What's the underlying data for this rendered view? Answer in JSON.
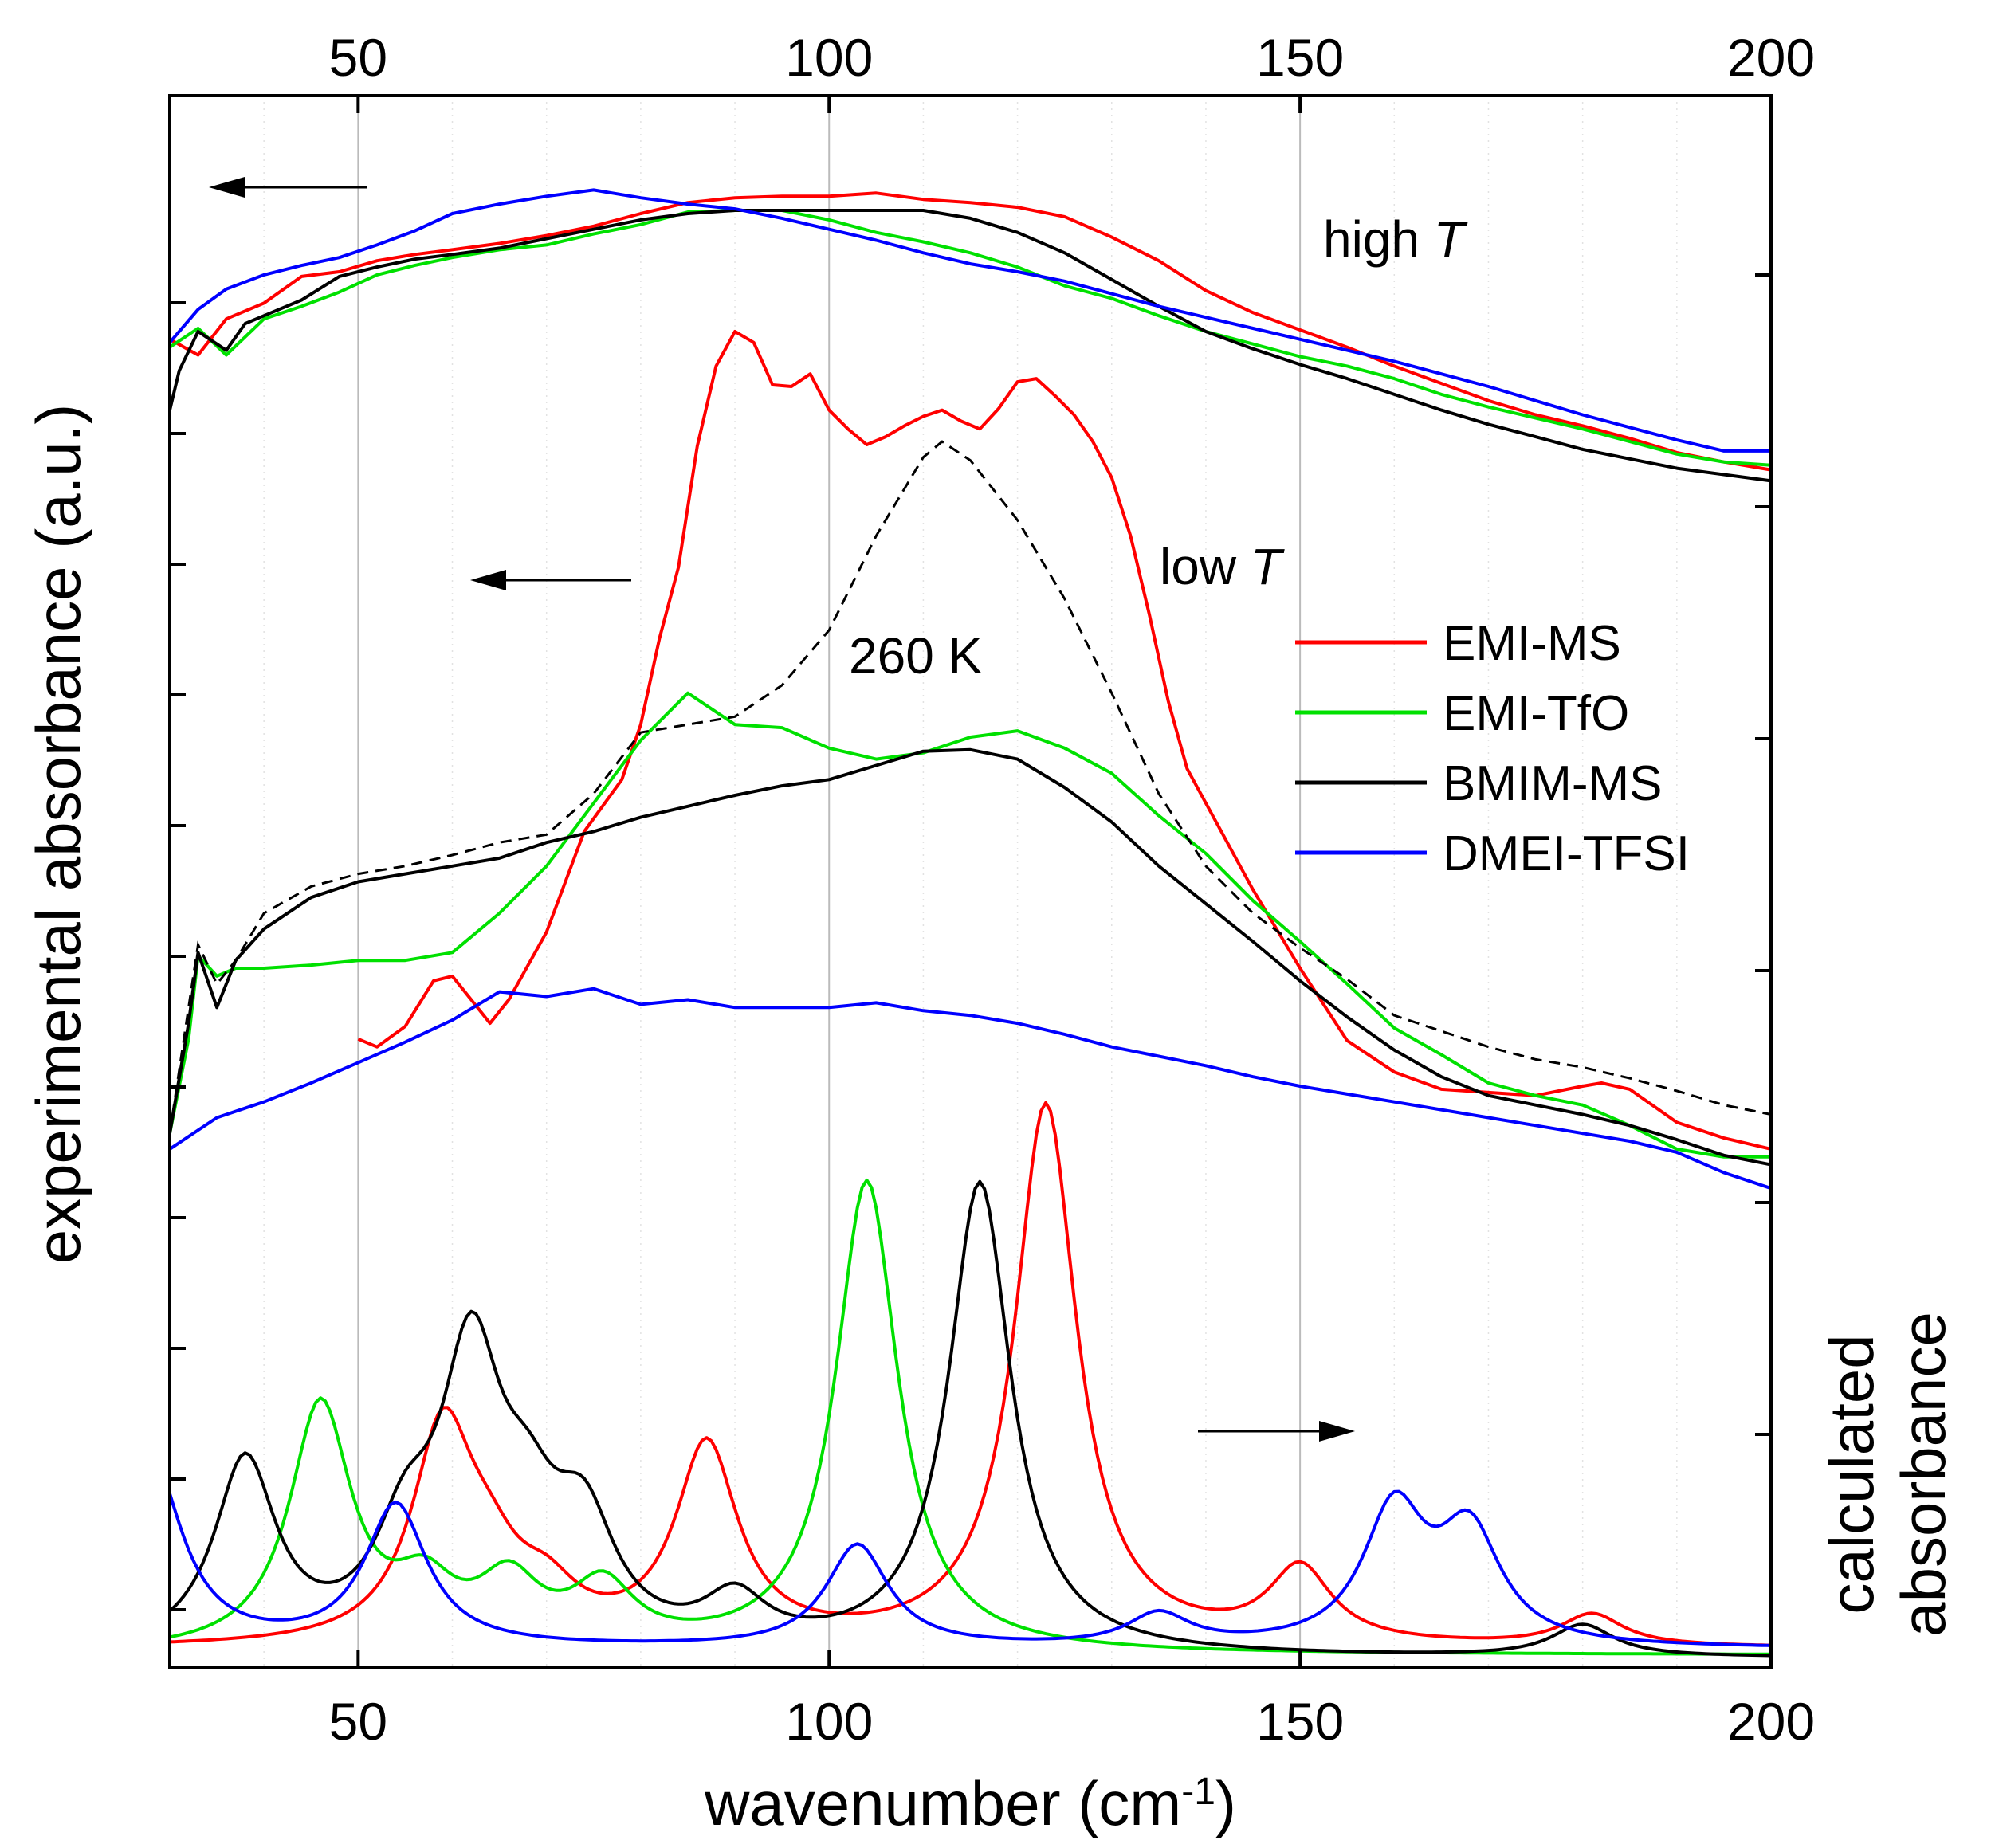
{
  "chart_data": {
    "type": "line",
    "x_label": "wavenumber (cm",
    "x_label_sup": "-1",
    "x_label_close": ")",
    "y_label_left": "experimental absorbance (a.u.)",
    "y_label_right_line1": "calculated",
    "y_label_right_line2": "absorbance",
    "xlim": [
      30,
      200
    ],
    "x_ticks": [
      50,
      100,
      150,
      200
    ],
    "x_tick_labels": [
      "50",
      "100",
      "150",
      "200"
    ],
    "top_tick_labels": [
      "50",
      "100",
      "150",
      "200"
    ],
    "y_range_normalized": [
      0,
      1
    ],
    "annotations": {
      "high_t": "high",
      "low_t": "low",
      "t_symbol": "T",
      "temp_260": "260 K"
    },
    "legend": [
      "EMI-MS",
      "EMI-TfO",
      "BMIM-MS",
      "DMEI-TFSI"
    ],
    "colors": {
      "EMI-MS": "#ff0000",
      "EMI-TfO": "#00e000",
      "BMIM-MS": "#000000",
      "DMEI-TFSI": "#0000ff",
      "ref": "#000000"
    },
    "series_high_T": [
      {
        "name": "EMI-MS",
        "x": [
          30,
          33,
          36,
          40,
          44,
          48,
          52,
          56,
          60,
          65,
          70,
          75,
          80,
          85,
          90,
          95,
          100,
          105,
          110,
          115,
          120,
          125,
          130,
          135,
          140,
          145,
          150,
          155,
          160,
          165,
          170,
          175,
          180,
          185,
          190,
          195,
          200
        ],
        "y": [
          0.845,
          0.835,
          0.858,
          0.868,
          0.885,
          0.888,
          0.895,
          0.899,
          0.902,
          0.906,
          0.911,
          0.917,
          0.925,
          0.932,
          0.935,
          0.936,
          0.936,
          0.938,
          0.934,
          0.932,
          0.929,
          0.923,
          0.91,
          0.895,
          0.876,
          0.862,
          0.851,
          0.84,
          0.828,
          0.817,
          0.806,
          0.797,
          0.79,
          0.782,
          0.773,
          0.767,
          0.762
        ]
      },
      {
        "name": "EMI-TfO",
        "x": [
          30,
          33,
          36,
          40,
          44,
          48,
          52,
          56,
          60,
          65,
          70,
          75,
          80,
          85,
          90,
          95,
          100,
          105,
          110,
          115,
          120,
          125,
          130,
          135,
          140,
          145,
          150,
          155,
          160,
          165,
          170,
          175,
          180,
          185,
          190,
          195,
          200
        ],
        "y": [
          0.84,
          0.852,
          0.835,
          0.858,
          0.866,
          0.875,
          0.886,
          0.892,
          0.897,
          0.902,
          0.905,
          0.912,
          0.918,
          0.926,
          0.927,
          0.927,
          0.921,
          0.913,
          0.907,
          0.9,
          0.891,
          0.879,
          0.871,
          0.86,
          0.85,
          0.842,
          0.834,
          0.828,
          0.82,
          0.81,
          0.802,
          0.795,
          0.788,
          0.78,
          0.772,
          0.767,
          0.765
        ]
      },
      {
        "name": "BMIM-MS",
        "x": [
          30,
          31,
          33,
          36,
          38,
          40,
          44,
          48,
          52,
          56,
          60,
          65,
          70,
          75,
          80,
          85,
          90,
          95,
          100,
          105,
          110,
          115,
          120,
          125,
          130,
          135,
          140,
          145,
          150,
          155,
          160,
          165,
          170,
          175,
          180,
          185,
          190,
          195,
          200
        ],
        "y": [
          0.8,
          0.825,
          0.85,
          0.838,
          0.855,
          0.86,
          0.87,
          0.885,
          0.891,
          0.896,
          0.899,
          0.903,
          0.909,
          0.915,
          0.921,
          0.925,
          0.927,
          0.927,
          0.927,
          0.927,
          0.927,
          0.922,
          0.913,
          0.9,
          0.883,
          0.866,
          0.85,
          0.839,
          0.829,
          0.82,
          0.81,
          0.8,
          0.791,
          0.783,
          0.775,
          0.769,
          0.763,
          0.759,
          0.755
        ]
      },
      {
        "name": "DMEI-TFSI",
        "x": [
          30,
          33,
          36,
          40,
          44,
          48,
          52,
          56,
          60,
          65,
          70,
          75,
          80,
          85,
          90,
          95,
          100,
          105,
          110,
          115,
          120,
          125,
          130,
          135,
          140,
          145,
          150,
          155,
          160,
          165,
          170,
          175,
          180,
          185,
          190,
          195,
          200
        ],
        "y": [
          0.843,
          0.864,
          0.877,
          0.886,
          0.892,
          0.897,
          0.905,
          0.914,
          0.925,
          0.931,
          0.936,
          0.94,
          0.935,
          0.931,
          0.928,
          0.922,
          0.915,
          0.908,
          0.9,
          0.893,
          0.888,
          0.882,
          0.874,
          0.866,
          0.859,
          0.852,
          0.845,
          0.838,
          0.831,
          0.823,
          0.815,
          0.806,
          0.797,
          0.789,
          0.781,
          0.774,
          0.774
        ]
      }
    ],
    "series_low_T": [
      {
        "name": "EMI-MS",
        "x": [
          50,
          52,
          55,
          58,
          60,
          62,
          64,
          66,
          70,
          74,
          78,
          80,
          82,
          84,
          86,
          88,
          90,
          92,
          94,
          96,
          98,
          100,
          102,
          104,
          106,
          108,
          110,
          112,
          114,
          116,
          118,
          120,
          122,
          124,
          126,
          128,
          130,
          132,
          134,
          136,
          138,
          140,
          145,
          150,
          155,
          160,
          165,
          170,
          175,
          180,
          182,
          185,
          190,
          195,
          200
        ],
        "y": [
          0.4,
          0.395,
          0.408,
          0.437,
          0.44,
          0.425,
          0.41,
          0.425,
          0.468,
          0.532,
          0.565,
          0.6,
          0.655,
          0.7,
          0.777,
          0.828,
          0.85,
          0.843,
          0.816,
          0.815,
          0.823,
          0.8,
          0.788,
          0.778,
          0.783,
          0.79,
          0.796,
          0.8,
          0.793,
          0.788,
          0.801,
          0.818,
          0.82,
          0.809,
          0.797,
          0.78,
          0.757,
          0.72,
          0.67,
          0.615,
          0.572,
          0.55,
          0.495,
          0.445,
          0.399,
          0.379,
          0.368,
          0.366,
          0.364,
          0.37,
          0.372,
          0.368,
          0.347,
          0.337,
          0.33
        ]
      },
      {
        "name": "EMI-TfO",
        "x": [
          30,
          32,
          33,
          35,
          37,
          40,
          45,
          50,
          55,
          60,
          65,
          70,
          75,
          80,
          85,
          90,
          95,
          100,
          105,
          110,
          115,
          120,
          125,
          130,
          135,
          140,
          145,
          150,
          155,
          160,
          165,
          170,
          175,
          180,
          185,
          190,
          195,
          200
        ],
        "y": [
          0.34,
          0.4,
          0.453,
          0.44,
          0.445,
          0.445,
          0.447,
          0.45,
          0.45,
          0.455,
          0.48,
          0.51,
          0.55,
          0.59,
          0.62,
          0.6,
          0.598,
          0.585,
          0.578,
          0.582,
          0.592,
          0.596,
          0.585,
          0.569,
          0.542,
          0.518,
          0.488,
          0.462,
          0.435,
          0.407,
          0.39,
          0.372,
          0.364,
          0.358,
          0.345,
          0.33,
          0.325,
          0.325
        ]
      },
      {
        "name": "BMIM-MS",
        "x": [
          30,
          32,
          33,
          35,
          37,
          40,
          45,
          50,
          55,
          60,
          65,
          70,
          75,
          80,
          85,
          90,
          95,
          100,
          105,
          110,
          115,
          120,
          125,
          130,
          135,
          140,
          145,
          150,
          155,
          160,
          165,
          170,
          175,
          180,
          185,
          190,
          195,
          200
        ],
        "y": [
          0.34,
          0.41,
          0.455,
          0.42,
          0.45,
          0.47,
          0.49,
          0.5,
          0.505,
          0.51,
          0.515,
          0.525,
          0.532,
          0.541,
          0.548,
          0.555,
          0.561,
          0.565,
          0.574,
          0.583,
          0.584,
          0.578,
          0.56,
          0.538,
          0.51,
          0.486,
          0.462,
          0.437,
          0.414,
          0.393,
          0.376,
          0.364,
          0.358,
          0.352,
          0.345,
          0.336,
          0.326,
          0.32
        ]
      },
      {
        "name": "DMEI-TFSI",
        "x": [
          30,
          35,
          40,
          45,
          50,
          55,
          60,
          65,
          70,
          75,
          80,
          85,
          90,
          95,
          100,
          105,
          110,
          115,
          120,
          125,
          130,
          135,
          140,
          145,
          150,
          155,
          160,
          165,
          170,
          175,
          180,
          185,
          190,
          195,
          200
        ],
        "y": [
          0.33,
          0.35,
          0.36,
          0.372,
          0.385,
          0.398,
          0.412,
          0.43,
          0.427,
          0.432,
          0.422,
          0.425,
          0.42,
          0.42,
          0.42,
          0.423,
          0.418,
          0.415,
          0.41,
          0.403,
          0.395,
          0.389,
          0.383,
          0.376,
          0.37,
          0.365,
          0.36,
          0.355,
          0.35,
          0.345,
          0.34,
          0.335,
          0.328,
          0.315,
          0.305
        ]
      },
      {
        "name": "260 K",
        "x": [
          30,
          32,
          33,
          35,
          37,
          40,
          45,
          50,
          55,
          60,
          65,
          70,
          75,
          80,
          85,
          90,
          95,
          100,
          105,
          110,
          112,
          115,
          120,
          125,
          130,
          135,
          140,
          145,
          150,
          155,
          160,
          165,
          170,
          175,
          180,
          185,
          190,
          195,
          200
        ],
        "y": [
          0.34,
          0.42,
          0.46,
          0.435,
          0.45,
          0.48,
          0.497,
          0.505,
          0.51,
          0.517,
          0.525,
          0.53,
          0.556,
          0.595,
          0.6,
          0.605,
          0.625,
          0.66,
          0.72,
          0.77,
          0.78,
          0.768,
          0.73,
          0.68,
          0.62,
          0.556,
          0.51,
          0.48,
          0.458,
          0.438,
          0.415,
          0.405,
          0.395,
          0.387,
          0.382,
          0.375,
          0.367,
          0.358,
          0.352
        ]
      }
    ],
    "series_calculated": [
      {
        "name": "EMI-MS",
        "components": {
          "base": 0.012,
          "peaks": [
            [
              59,
              0.133,
              4
            ],
            [
              64,
              0.035,
              4
            ],
            [
              70,
              0.025,
              4
            ],
            [
              87,
              0.125,
              4
            ],
            [
              123,
              0.344,
              4
            ],
            [
              150,
              0.047,
              4
            ],
            [
              181,
              0.02,
              4
            ]
          ]
        }
      },
      {
        "name": "EMI-TfO",
        "components": {
          "base": 0.008,
          "peaks": [
            [
              46,
              0.156,
              4
            ],
            [
              57,
              0.035,
              4
            ],
            [
              66,
              0.04,
              4
            ],
            [
              76,
              0.038,
              4
            ],
            [
              104,
              0.3,
              4
            ]
          ]
        }
      },
      {
        "name": "BMIM-MS",
        "components": {
          "base": 0.006,
          "peaks": [
            [
              38,
              0.12,
              4
            ],
            [
              55,
              0.06,
              4
            ],
            [
              62,
              0.175,
              4
            ],
            [
              68,
              0.06,
              4
            ],
            [
              74,
              0.07,
              4
            ],
            [
              90,
              0.03,
              4
            ],
            [
              116,
              0.3,
              4
            ],
            [
              180,
              0.02,
              4
            ]
          ]
        }
      },
      {
        "name": "DMEI-TFSI",
        "components": {
          "base": 0.012,
          "peaks": [
            [
              28,
              0.12,
              4
            ],
            [
              54,
              0.09,
              4
            ],
            [
              103,
              0.065,
              4
            ],
            [
              135,
              0.02,
              4
            ],
            [
              160,
              0.085,
              4
            ],
            [
              168,
              0.07,
              4
            ]
          ]
        }
      }
    ]
  }
}
